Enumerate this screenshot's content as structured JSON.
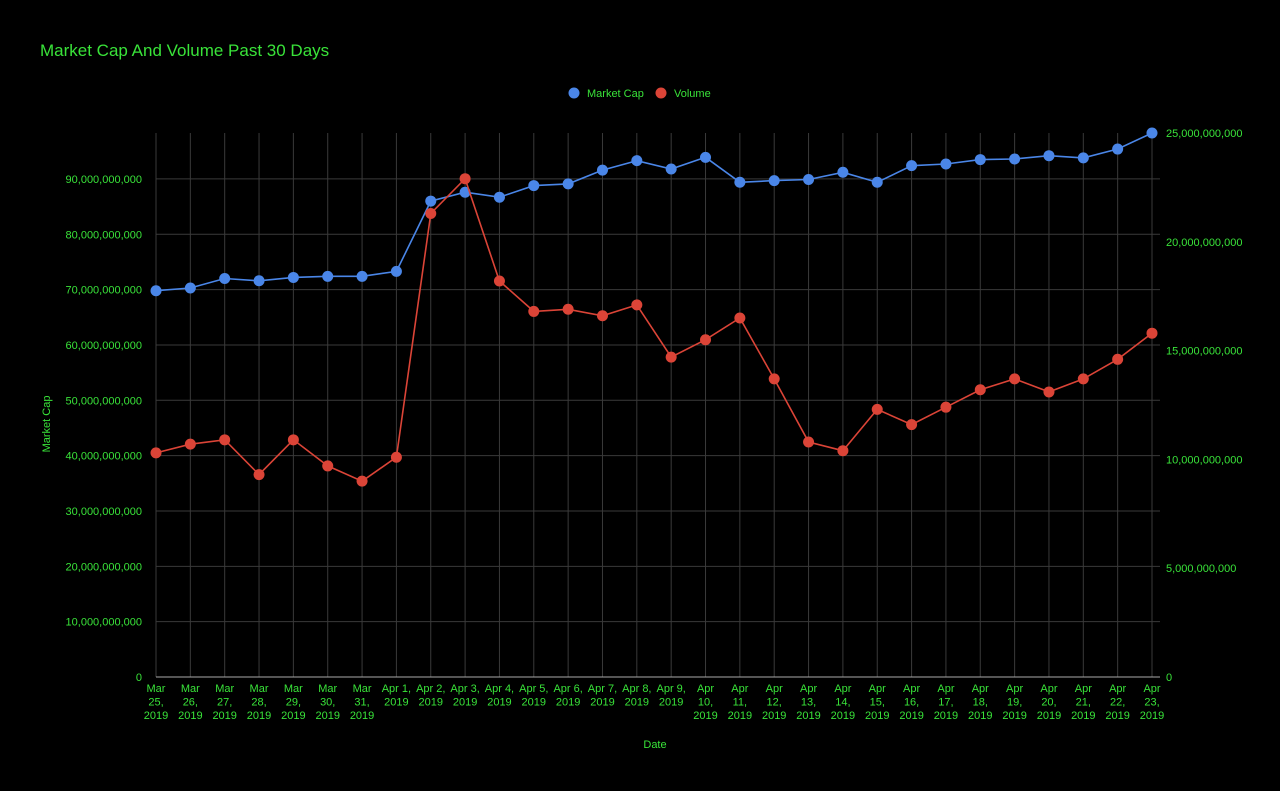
{
  "colors": {
    "background": "#000000",
    "text": "#39e339",
    "grid": "#3a3a3a",
    "baseline": "#aaaaaa",
    "market_cap": "#4a86e8",
    "volume": "#db4437"
  },
  "chart_data": {
    "type": "line",
    "title": "Market Cap And Volume Past 30 Days",
    "xlabel": "Date",
    "ylabel": "Market Cap",
    "y2label": "",
    "legend_position": "top",
    "grid": true,
    "categories": [
      [
        "Mar",
        "25,",
        "2019"
      ],
      [
        "Mar",
        "26,",
        "2019"
      ],
      [
        "Mar",
        "27,",
        "2019"
      ],
      [
        "Mar",
        "28,",
        "2019"
      ],
      [
        "Mar",
        "29,",
        "2019"
      ],
      [
        "Mar",
        "30,",
        "2019"
      ],
      [
        "Mar",
        "31,",
        "2019"
      ],
      [
        "Apr 1,",
        "2019"
      ],
      [
        "Apr 2,",
        "2019"
      ],
      [
        "Apr 3,",
        "2019"
      ],
      [
        "Apr 4,",
        "2019"
      ],
      [
        "Apr 5,",
        "2019"
      ],
      [
        "Apr 6,",
        "2019"
      ],
      [
        "Apr 7,",
        "2019"
      ],
      [
        "Apr 8,",
        "2019"
      ],
      [
        "Apr 9,",
        "2019"
      ],
      [
        "Apr",
        "10,",
        "2019"
      ],
      [
        "Apr",
        "11,",
        "2019"
      ],
      [
        "Apr",
        "12,",
        "2019"
      ],
      [
        "Apr",
        "13,",
        "2019"
      ],
      [
        "Apr",
        "14,",
        "2019"
      ],
      [
        "Apr",
        "15,",
        "2019"
      ],
      [
        "Apr",
        "16,",
        "2019"
      ],
      [
        "Apr",
        "17,",
        "2019"
      ],
      [
        "Apr",
        "18,",
        "2019"
      ],
      [
        "Apr",
        "19,",
        "2019"
      ],
      [
        "Apr",
        "20,",
        "2019"
      ],
      [
        "Apr",
        "21,",
        "2019"
      ],
      [
        "Apr",
        "22,",
        "2019"
      ],
      [
        "Apr",
        "23,",
        "2019"
      ]
    ],
    "y_ticks": [
      "0",
      "10,000,000,000",
      "20,000,000,000",
      "30,000,000,000",
      "40,000,000,000",
      "50,000,000,000",
      "60,000,000,000",
      "70,000,000,000",
      "80,000,000,000",
      "90,000,000,000"
    ],
    "y_tick_values": [
      0,
      10000000000,
      20000000000,
      30000000000,
      40000000000,
      50000000000,
      60000000000,
      70000000000,
      80000000000,
      90000000000
    ],
    "ylim": [
      0,
      98300000000
    ],
    "y2_ticks": [
      "0",
      "5,000,000,000",
      "10,000,000,000",
      "15,000,000,000",
      "20,000,000,000",
      "25,000,000,000"
    ],
    "y2_tick_values": [
      0,
      5000000000,
      10000000000,
      15000000000,
      20000000000,
      25000000000
    ],
    "y2lim": [
      0,
      25000000000
    ],
    "series": [
      {
        "name": "Market Cap",
        "axis": "left",
        "values": [
          69800000000,
          70300000000,
          72000000000,
          71600000000,
          72200000000,
          72400000000,
          72400000000,
          73300000000,
          86000000000,
          87600000000,
          86700000000,
          88800000000,
          89100000000,
          91600000000,
          93300000000,
          91800000000,
          93900000000,
          89400000000,
          89700000000,
          89900000000,
          91200000000,
          89400000000,
          92400000000,
          92700000000,
          93500000000,
          93600000000,
          94200000000,
          93800000000,
          95400000000,
          98300000000
        ]
      },
      {
        "name": "Volume",
        "axis": "right",
        "values": [
          10300000000,
          10700000000,
          10900000000,
          9300000000,
          10900000000,
          9700000000,
          9000000000,
          10100000000,
          21300000000,
          22900000000,
          18200000000,
          16800000000,
          16900000000,
          16600000000,
          17100000000,
          14700000000,
          15500000000,
          16500000000,
          13700000000,
          10800000000,
          10400000000,
          12300000000,
          11600000000,
          12400000000,
          13200000000,
          13700000000,
          13100000000,
          13700000000,
          14600000000,
          15800000000
        ]
      }
    ]
  }
}
